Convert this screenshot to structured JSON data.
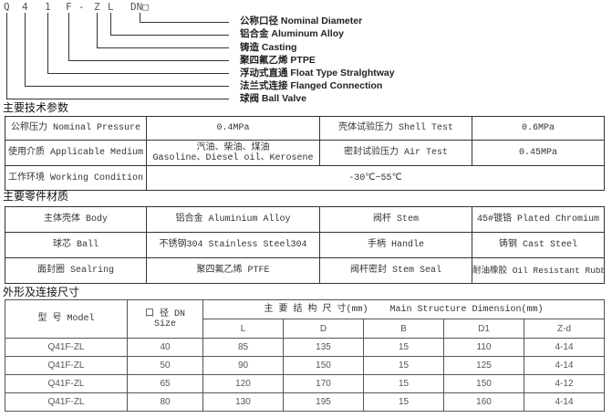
{
  "designation": {
    "chars": [
      "Q",
      "4",
      "1",
      "F",
      "-",
      "Z",
      "L",
      "DN□"
    ],
    "labels": [
      "公称口径  Nominal Diameter",
      "铝合金  Aluminum Alloy",
      "铸造   Casting",
      "聚四氟乙烯  PTPE",
      "浮动式直通 Float Type Stralghtway",
      "法兰式连接 Flanged Connection",
      "球阀 Ball Valve"
    ]
  },
  "tech": {
    "title": "主要技术参数",
    "rows": [
      [
        "公称压力 Nominal Pressure",
        "0.4MPa",
        "壳体试验压力 Shell Test",
        "0.6MPa"
      ],
      [
        "使用介质 Applicable Medium",
        "汽油、柴油、煤油",
        "密封试验压力 Air Test",
        "0.45MPa"
      ],
      [
        "工作环境 Working Condition",
        "-30℃~55℃"
      ]
    ],
    "medium_en": "Gasoline、Diesel oil、Kerosene"
  },
  "materials": {
    "title": "主要零件材质",
    "rows": [
      [
        "主体壳体 Body",
        "铝合金  Aluminium Alloy",
        "阀杆  Stem",
        "45#镀铬 Plated Chromium"
      ],
      [
        "球芯   Ball",
        "不锈钢304   Stainless Steel304",
        "手柄  Handle",
        "铸钢 Cast Steel"
      ],
      [
        "面封圈  Sealring",
        "聚四氟乙烯  PTFE",
        "阀杆密封  Stem Seal",
        "耐油橡胶 Oil Resistant Rubber"
      ]
    ]
  },
  "dimensions": {
    "title": "外形及连接尺寸",
    "model_header": "型  号 Model",
    "size_header": "口  径 DN",
    "size_header2": "Size",
    "main_header": "主 要 结 构 尺 寸(mm)    Main Structure Dimension(mm)",
    "columns": [
      "L",
      "D",
      "B",
      "D1",
      "Z-d"
    ],
    "rows": [
      [
        "Q41F-ZL",
        "40",
        "85",
        "135",
        "15",
        "110",
        "4-14"
      ],
      [
        "Q41F-ZL",
        "50",
        "90",
        "150",
        "15",
        "125",
        "4-14"
      ],
      [
        "Q41F-ZL",
        "65",
        "120",
        "170",
        "15",
        "150",
        "4-12"
      ],
      [
        "Q41F-ZL",
        "80",
        "130",
        "195",
        "15",
        "160",
        "4-14"
      ]
    ]
  }
}
